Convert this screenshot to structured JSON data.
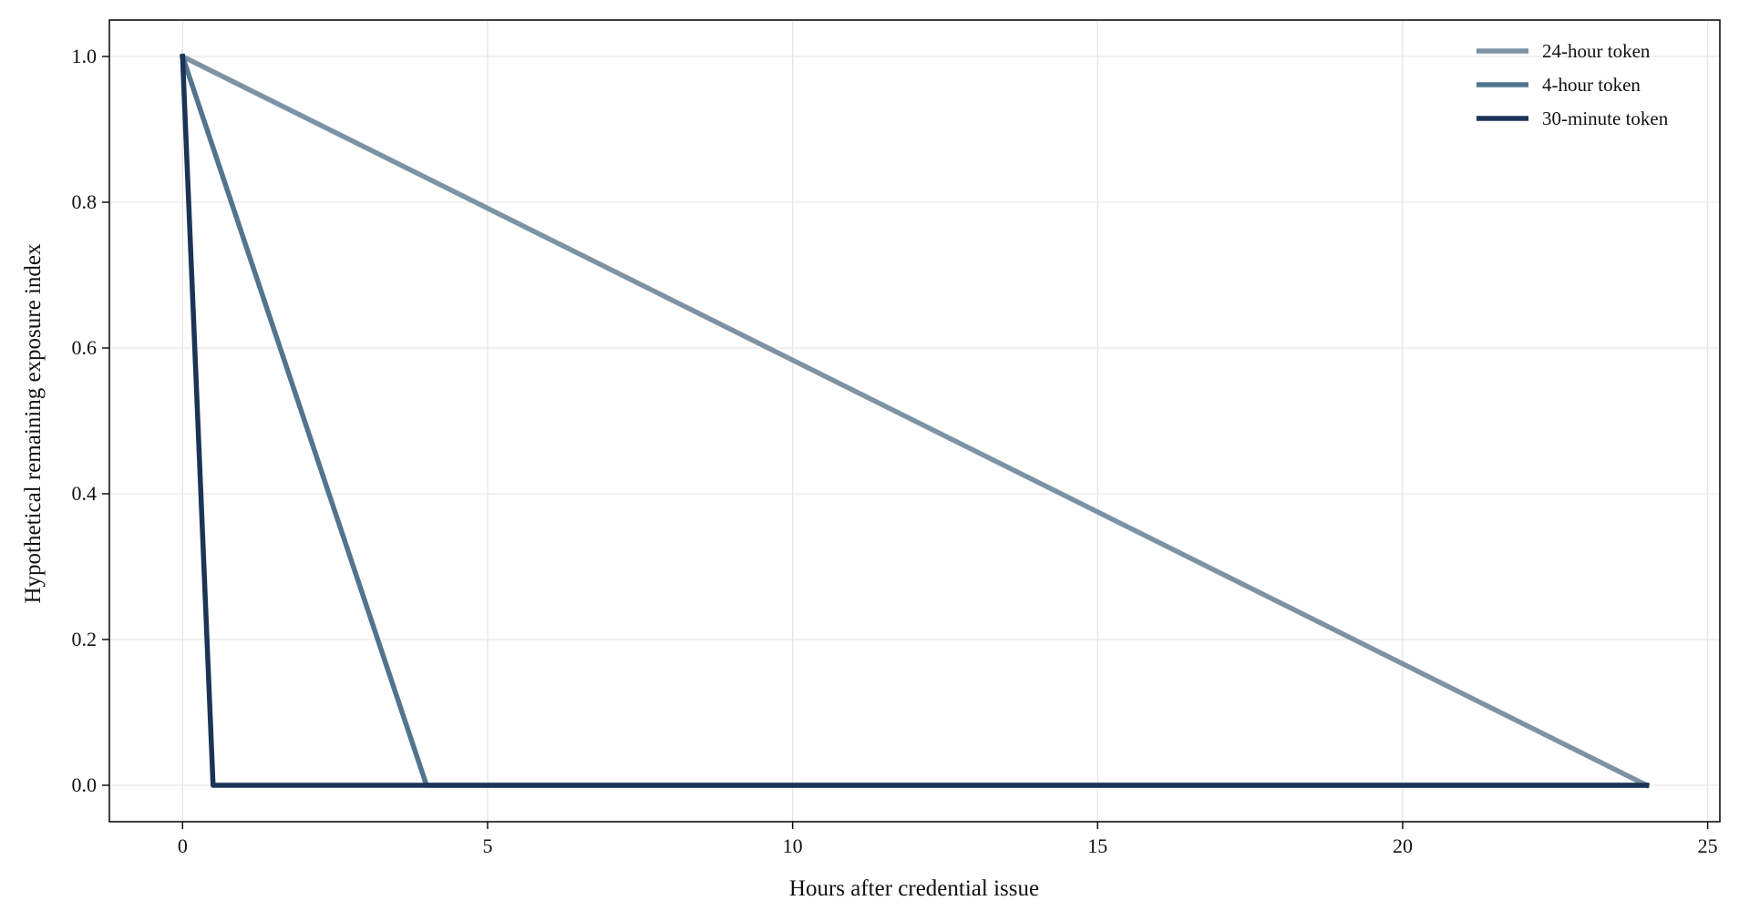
{
  "chart_data": {
    "type": "line",
    "title": "",
    "xlabel": "Hours after credential issue",
    "ylabel": "Hypothetical remaining exposure index",
    "xlim": [
      -1.2,
      25.2
    ],
    "ylim": [
      -0.05,
      1.05
    ],
    "x_ticks": [
      0,
      5,
      10,
      15,
      20,
      25
    ],
    "x_tick_labels": [
      "0",
      "5",
      "10",
      "15",
      "20",
      "25"
    ],
    "y_ticks": [
      0.0,
      0.2,
      0.4,
      0.6,
      0.8,
      1.0
    ],
    "y_tick_labels": [
      "0.0",
      "0.2",
      "0.4",
      "0.6",
      "0.8",
      "1.0"
    ],
    "grid": true,
    "legend_position": "top-right",
    "series": [
      {
        "name": "24-hour token",
        "color": "#7d93a3",
        "x": [
          0,
          24
        ],
        "y": [
          1.0,
          0.0
        ]
      },
      {
        "name": "4-hour token",
        "color": "#52758f",
        "x": [
          0,
          4,
          24
        ],
        "y": [
          1.0,
          0.0,
          0.0
        ]
      },
      {
        "name": "30-minute token",
        "color": "#1b3557",
        "x": [
          0,
          0.5,
          24
        ],
        "y": [
          1.0,
          0.0,
          0.0
        ]
      }
    ]
  }
}
